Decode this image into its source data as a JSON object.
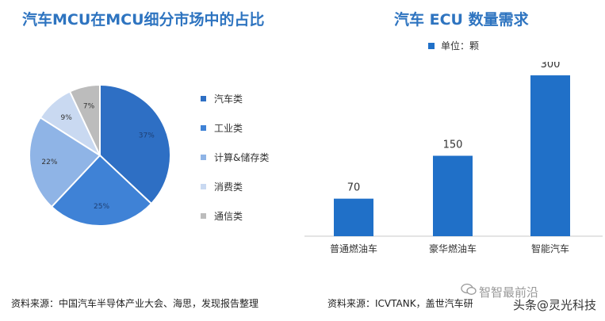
{
  "pie": {
    "title": "汽车MCU在MCU细分市场中的占比",
    "source": "资料来源：中国汽车半导体产业大会、海思，发现报告整理"
  },
  "bar": {
    "title": "汽车 ECU 数量需求",
    "legend": "单位：颗",
    "source": "资料来源：ICVTANK，盖世汽车研"
  },
  "watermark": {
    "line1": "智智最前沿",
    "line2": "头条@灵光科技"
  },
  "icons": [
    "wechat-icon"
  ],
  "chart_data": [
    {
      "type": "pie",
      "title": "汽车MCU在MCU细分市场中的占比",
      "categories": [
        "汽车类",
        "工业类",
        "计算&储存类",
        "消费类",
        "通信类"
      ],
      "values": [
        37,
        25,
        22,
        9,
        7
      ],
      "labels": [
        "37%",
        "25%",
        "22%",
        "9%",
        "7%"
      ],
      "colors": [
        "#2e6fc4",
        "#3f82d6",
        "#8fb4e6",
        "#c9d9f1",
        "#bcbcbc"
      ],
      "legend_position": "right"
    },
    {
      "type": "bar",
      "title": "汽车 ECU 数量需求",
      "categories": [
        "普通燃油车",
        "豪华燃油车",
        "智能汽车"
      ],
      "series": [
        {
          "name": "单位：颗",
          "values": [
            70,
            150,
            300
          ]
        }
      ],
      "ylim": [
        0,
        340
      ],
      "color": "#2070c8",
      "grid": false,
      "legend_position": "top"
    }
  ]
}
